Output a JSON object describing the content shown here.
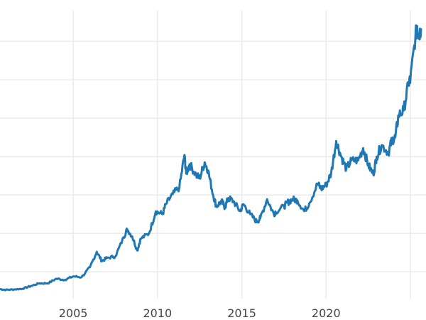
{
  "chart_data": {
    "type": "line",
    "title": "",
    "xlabel": "",
    "ylabel": "",
    "xlim": [
      2000.66,
      2025.63
    ],
    "ylim": [
      150,
      3900
    ],
    "grid": true,
    "x_ticks": [
      2005,
      2010,
      2015,
      2020,
      2025
    ],
    "x_tick_labels": [
      "2005",
      "2010",
      "2015",
      "2020",
      ""
    ],
    "y_gridlines": [
      500,
      1000,
      1500,
      2000,
      2500,
      3000,
      3500
    ],
    "line_color": "#1f77b4",
    "series": [
      {
        "x": [
          2000.66,
          2001.0,
          2001.5,
          2002.0,
          2002.5,
          2003.0,
          2003.5,
          2004.0,
          2004.5,
          2005.0,
          2005.5,
          2006.0,
          2006.4,
          2006.7,
          2007.0,
          2007.5,
          2008.0,
          2008.2,
          2008.5,
          2008.8,
          2009.0,
          2009.5,
          2009.9,
          2010.3,
          2010.5,
          2010.9,
          2011.3,
          2011.6,
          2011.7,
          2011.9,
          2012.3,
          2012.5,
          2012.8,
          2013.0,
          2013.3,
          2013.5,
          2013.8,
          2014.0,
          2014.2,
          2014.5,
          2014.9,
          2015.1,
          2015.5,
          2015.9,
          2016.1,
          2016.5,
          2016.9,
          2017.0,
          2017.5,
          2017.7,
          2018.0,
          2018.3,
          2018.7,
          2019.0,
          2019.5,
          2019.7,
          2020.0,
          2020.3,
          2020.6,
          2020.9,
          2021.2,
          2021.5,
          2021.9,
          2022.2,
          2022.5,
          2022.8,
          2023.0,
          2023.3,
          2023.7,
          2023.9,
          2024.1,
          2024.3,
          2024.6,
          2024.9,
          2025.0,
          2025.3,
          2025.4,
          2025.5,
          2025.63
        ],
        "y": [
          275,
          265,
          270,
          280,
          315,
          350,
          350,
          410,
          395,
          440,
          430,
          560,
          760,
          640,
          680,
          700,
          950,
          1055,
          960,
          778,
          930,
          1000,
          1287,
          1250,
          1380,
          1509,
          1600,
          2020,
          1780,
          1900,
          1760,
          1720,
          1926,
          1820,
          1500,
          1352,
          1420,
          1340,
          1460,
          1420,
          1290,
          1380,
          1250,
          1148,
          1200,
          1444,
          1250,
          1280,
          1350,
          1400,
          1444,
          1430,
          1290,
          1390,
          1648,
          1580,
          1630,
          1780,
          2204,
          2000,
          1840,
          1950,
          1950,
          2110,
          1890,
          1770,
          2000,
          2150,
          2050,
          2213,
          2250,
          2540,
          2600,
          2970,
          3000,
          3570,
          3700,
          3580,
          3670
        ]
      }
    ]
  }
}
